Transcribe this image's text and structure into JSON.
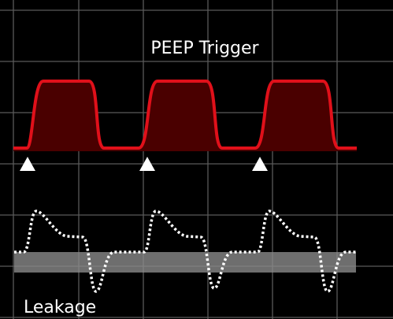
{
  "labels": {
    "peep_trigger": "PEEP Trigger",
    "leakage": "Leakage"
  }
}
